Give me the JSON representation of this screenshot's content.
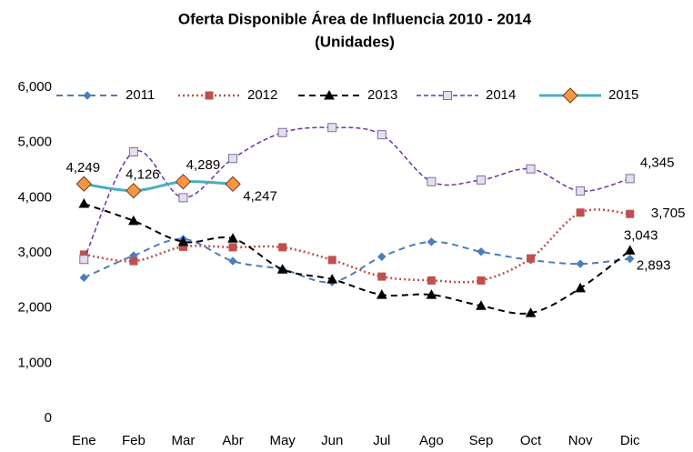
{
  "chart_data": {
    "type": "line",
    "title": "Oferta Disponible Área de Influencia 2010 - 2014",
    "subtitle": "(Unidades)",
    "categories": [
      "Ene",
      "Feb",
      "Mar",
      "Abr",
      "May",
      "Jun",
      "Jul",
      "Ago",
      "Sep",
      "Oct",
      "Nov",
      "Dic"
    ],
    "ylim": [
      0,
      6000
    ],
    "yticks": [
      0,
      {
        "value": 1000,
        "label": "1,000"
      },
      {
        "value": 2000,
        "label": "2,000"
      },
      {
        "value": 3000,
        "label": "3,000"
      },
      {
        "value": 4000,
        "label": "4,000"
      },
      {
        "value": 5000,
        "label": "5,000"
      },
      {
        "value": 6000,
        "label": "6,000"
      }
    ],
    "grid": false,
    "legend": "top",
    "series": [
      {
        "name": "2011",
        "color": "#4a7ebb",
        "values": [
          2550,
          2950,
          3250,
          2850,
          2700,
          2470,
          2930,
          3200,
          3020,
          2870,
          2800,
          2893
        ],
        "value_labels": [
          null,
          null,
          null,
          null,
          null,
          null,
          null,
          null,
          null,
          null,
          null,
          "2,893"
        ]
      },
      {
        "name": "2012",
        "color": "#c0504d",
        "values": [
          2970,
          2850,
          3110,
          3100,
          3100,
          2870,
          2570,
          2500,
          2500,
          2900,
          3730,
          3705
        ],
        "value_labels": [
          null,
          null,
          null,
          null,
          null,
          null,
          null,
          null,
          null,
          null,
          null,
          "3,705"
        ]
      },
      {
        "name": "2013",
        "color": "#000000",
        "values": [
          3890,
          3580,
          3200,
          3260,
          2700,
          2520,
          2240,
          2240,
          2040,
          1910,
          2360,
          3043
        ],
        "value_labels": [
          null,
          null,
          null,
          null,
          null,
          null,
          null,
          null,
          null,
          null,
          null,
          "3,043"
        ]
      },
      {
        "name": "2014",
        "color": "#7030a0",
        "values": [
          2880,
          4830,
          4000,
          4710,
          5180,
          5270,
          5140,
          4290,
          4320,
          4520,
          4120,
          4345
        ],
        "value_labels": [
          null,
          null,
          null,
          null,
          null,
          null,
          null,
          null,
          null,
          null,
          null,
          "4,345"
        ]
      },
      {
        "name": "2015",
        "color": "#4bacc6",
        "values": [
          4249,
          4126,
          4289,
          4247,
          null,
          null,
          null,
          null,
          null,
          null,
          null,
          null
        ],
        "value_labels": [
          "4,249",
          "4,126",
          "4,289",
          "4,247",
          null,
          null,
          null,
          null,
          null,
          null,
          null,
          null
        ]
      }
    ]
  }
}
